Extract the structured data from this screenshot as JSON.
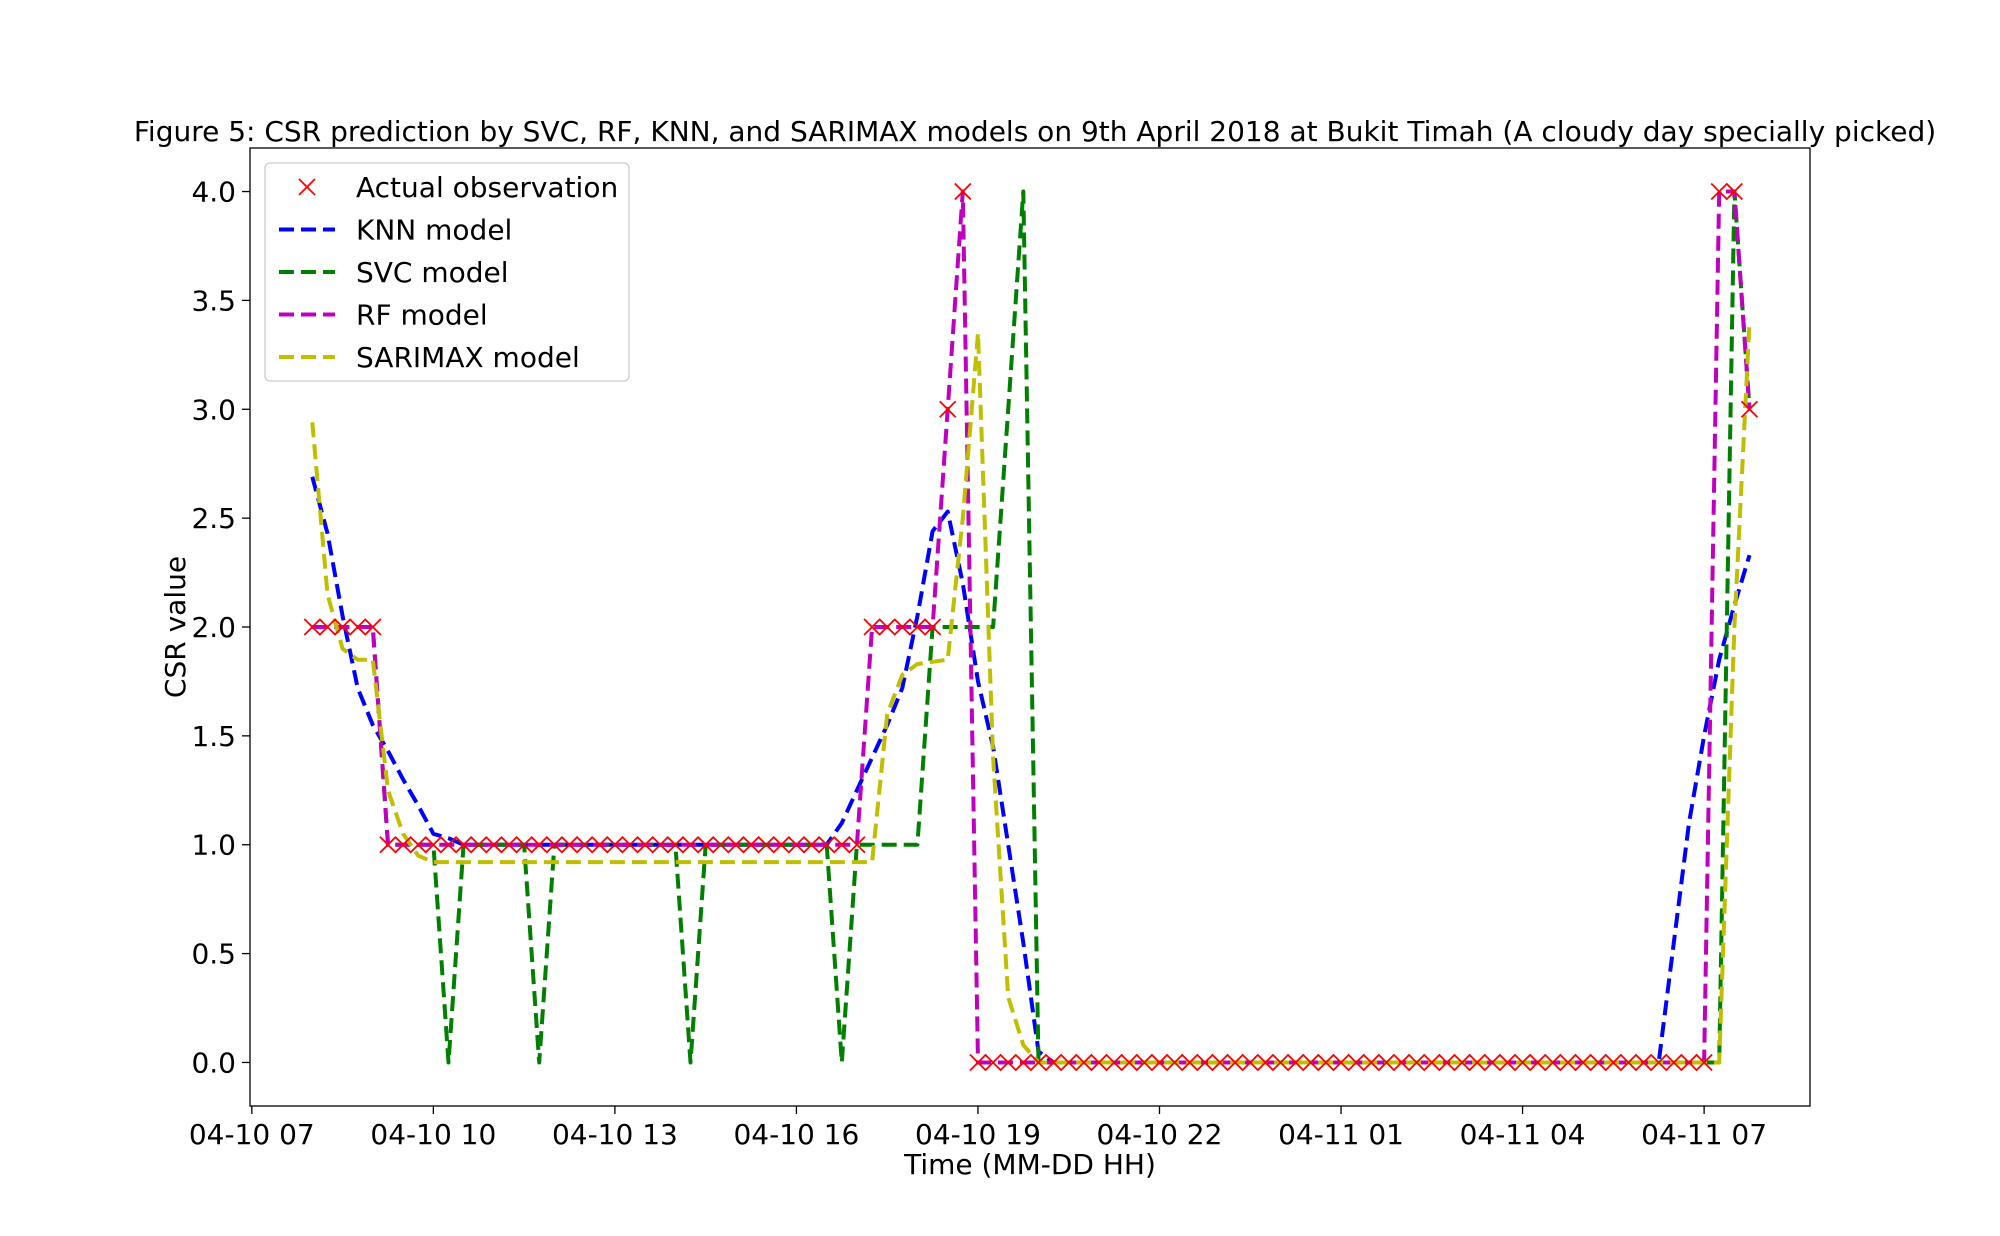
{
  "chart_data": {
    "type": "line",
    "title": "Figure 5: CSR prediction by SVC, RF, KNN, and SARIMAX models on 9th April 2018 at Bukit Timah (A cloudy day specially picked)",
    "xlabel": "Time (MM-DD HH)",
    "ylabel": "CSR value",
    "x_tick_labels": [
      "04-10 07",
      "04-10 10",
      "04-10 13",
      "04-10 16",
      "04-10 19",
      "04-10 22",
      "04-11 01",
      "04-11 04",
      "04-11 07"
    ],
    "x_ticks_hours": [
      7,
      10,
      13,
      16,
      19,
      22,
      25,
      28,
      31
    ],
    "xlim_hours": [
      6.97,
      32.75
    ],
    "x_unit_note": "hours since 04-10 00:00",
    "ylim": [
      -0.2,
      4.2
    ],
    "y_ticks": [
      0.0,
      0.5,
      1.0,
      1.5,
      2.0,
      2.5,
      3.0,
      3.5,
      4.0
    ],
    "y_tick_labels": [
      "0.0",
      "0.5",
      "1.0",
      "1.5",
      "2.0",
      "2.5",
      "3.0",
      "3.5",
      "4.0"
    ],
    "legend": {
      "placement": "upper-left"
    },
    "grid": false,
    "x": [
      8.0,
      8.25,
      8.5,
      8.75,
      9.0,
      9.25,
      9.5,
      9.75,
      10.0,
      10.25,
      10.5,
      10.75,
      11.0,
      11.25,
      11.5,
      11.75,
      12.0,
      12.25,
      12.5,
      12.75,
      13.0,
      13.25,
      13.5,
      13.75,
      14.0,
      14.25,
      14.5,
      14.75,
      15.0,
      15.25,
      15.5,
      15.75,
      16.0,
      16.25,
      16.5,
      16.75,
      17.0,
      17.25,
      17.5,
      17.75,
      18.0,
      18.25,
      18.5,
      18.75,
      19.0,
      19.25,
      19.5,
      19.75,
      20.0,
      20.25,
      20.5,
      20.75,
      21.0,
      21.25,
      21.5,
      21.75,
      22.0,
      22.25,
      22.5,
      22.75,
      23.0,
      23.25,
      23.5,
      23.75,
      24.0,
      24.25,
      24.5,
      24.75,
      25.0,
      25.25,
      25.5,
      25.75,
      26.0,
      26.25,
      26.5,
      26.75,
      27.0,
      27.25,
      27.5,
      27.75,
      28.0,
      28.25,
      28.5,
      28.75,
      29.0,
      29.25,
      29.5,
      29.75,
      30.0,
      30.25,
      30.5,
      30.75,
      31.0,
      31.25,
      31.5,
      31.75
    ],
    "series": [
      {
        "name": "Actual observation",
        "style": "marker-x",
        "color": "#ff0000",
        "values": [
          2,
          2,
          2,
          2,
          2,
          1,
          1,
          1,
          1,
          1,
          1,
          1,
          1,
          1,
          1,
          1,
          1,
          1,
          1,
          1,
          1,
          1,
          1,
          1,
          1,
          1,
          1,
          1,
          1,
          1,
          1,
          1,
          1,
          1,
          1,
          1,
          1,
          2,
          2,
          2,
          2,
          2,
          3,
          4,
          0,
          0,
          0,
          0,
          0,
          0,
          0,
          0,
          0,
          0,
          0,
          0,
          0,
          0,
          0,
          0,
          0,
          0,
          0,
          0,
          0,
          0,
          0,
          0,
          0,
          0,
          0,
          0,
          0,
          0,
          0,
          0,
          0,
          0,
          0,
          0,
          0,
          0,
          0,
          0,
          0,
          0,
          0,
          0,
          0,
          0,
          0,
          0,
          0,
          4,
          4,
          3
        ]
      },
      {
        "name": "KNN model",
        "style": "dashed",
        "color": "#0000ff",
        "values": [
          2.69,
          2.43,
          2.05,
          1.72,
          1.55,
          1.43,
          1.3,
          1.18,
          1.05,
          1.03,
          1.0,
          1.0,
          1.0,
          1.0,
          1.0,
          1.0,
          1.0,
          1.0,
          1.0,
          1.0,
          1.0,
          1.0,
          1.0,
          1.0,
          1.0,
          1.0,
          1.0,
          1.0,
          1.0,
          1.0,
          1.0,
          1.0,
          1.0,
          1.0,
          1.0,
          1.1,
          1.25,
          1.4,
          1.55,
          1.72,
          2.05,
          2.44,
          2.53,
          2.2,
          1.75,
          1.45,
          1.0,
          0.55,
          0.05,
          0.0,
          0.0,
          0.0,
          0.0,
          0.0,
          0.0,
          0.0,
          0.0,
          0.0,
          0.0,
          0.0,
          0.0,
          0.0,
          0.0,
          0.0,
          0.0,
          0.0,
          0.0,
          0.0,
          0.0,
          0.0,
          0.0,
          0.0,
          0.0,
          0.0,
          0.0,
          0.0,
          0.0,
          0.0,
          0.0,
          0.0,
          0.0,
          0.0,
          0.0,
          0.0,
          0.0,
          0.0,
          0.0,
          0.0,
          0.0,
          0.0,
          0.55,
          1.1,
          1.5,
          1.85,
          2.1,
          2.33
        ]
      },
      {
        "name": "SVC model",
        "style": "dashed",
        "color": "#008000",
        "values": [
          2,
          2,
          2,
          2,
          2,
          1,
          1,
          1,
          1,
          0,
          1,
          1,
          1,
          1,
          1,
          0,
          1,
          1,
          1,
          1,
          1,
          1,
          1,
          1,
          1,
          0,
          1,
          1,
          1,
          1,
          1,
          1,
          1,
          1,
          1,
          0,
          1,
          1,
          1,
          1,
          1,
          2,
          2,
          2,
          2,
          2,
          3,
          4,
          0,
          0,
          0,
          0,
          0,
          0,
          0,
          0,
          0,
          0,
          0,
          0,
          0,
          0,
          0,
          0,
          0,
          0,
          0,
          0,
          0,
          0,
          0,
          0,
          0,
          0,
          0,
          0,
          0,
          0,
          0,
          0,
          0,
          0,
          0,
          0,
          0,
          0,
          0,
          0,
          0,
          0,
          0,
          0,
          0,
          0,
          4,
          3
        ]
      },
      {
        "name": "RF model",
        "style": "dashed",
        "color": "#c000c0",
        "values": [
          2,
          2,
          2,
          2,
          2,
          1,
          1,
          1,
          1,
          1,
          1,
          1,
          1,
          1,
          1,
          1,
          1,
          1,
          1,
          1,
          1,
          1,
          1,
          1,
          1,
          1,
          1,
          1,
          1,
          1,
          1,
          1,
          1,
          1,
          1,
          1,
          1,
          2,
          2,
          2,
          2,
          2,
          3,
          4,
          0,
          0,
          0,
          0,
          0,
          0,
          0,
          0,
          0,
          0,
          0,
          0,
          0,
          0,
          0,
          0,
          0,
          0,
          0,
          0,
          0,
          0,
          0,
          0,
          0,
          0,
          0,
          0,
          0,
          0,
          0,
          0,
          0,
          0,
          0,
          0,
          0,
          0,
          0,
          0,
          0,
          0,
          0,
          0,
          0,
          0,
          0,
          0,
          0,
          4,
          4,
          3
        ]
      },
      {
        "name": "SARIMAX model",
        "style": "dashed",
        "color": "#bfbf00",
        "values": [
          2.94,
          2.15,
          1.9,
          1.85,
          1.85,
          1.25,
          1.05,
          0.95,
          0.92,
          0.92,
          0.92,
          0.92,
          0.92,
          0.92,
          0.92,
          0.92,
          0.92,
          0.92,
          0.92,
          0.92,
          0.92,
          0.92,
          0.92,
          0.92,
          0.92,
          0.92,
          0.92,
          0.92,
          0.92,
          0.92,
          0.92,
          0.92,
          0.92,
          0.92,
          0.92,
          0.92,
          0.92,
          0.92,
          1.6,
          1.78,
          1.83,
          1.84,
          1.85,
          2.5,
          3.35,
          1.4,
          0.3,
          0.08,
          0.0,
          0.0,
          0.0,
          0.0,
          0.0,
          0.0,
          0.0,
          0.0,
          0.0,
          0.0,
          0.0,
          0.0,
          0.0,
          0.0,
          0.0,
          0.0,
          0.0,
          0.0,
          0.0,
          0.0,
          0.0,
          0.0,
          0.0,
          0.0,
          0.0,
          0.0,
          0.0,
          0.0,
          0.0,
          0.0,
          0.0,
          0.0,
          0.0,
          0.0,
          0.0,
          0.0,
          0.0,
          0.0,
          0.0,
          0.0,
          0.0,
          0.0,
          0.0,
          0.0,
          0.0,
          0.0,
          2.0,
          3.4
        ]
      }
    ]
  }
}
